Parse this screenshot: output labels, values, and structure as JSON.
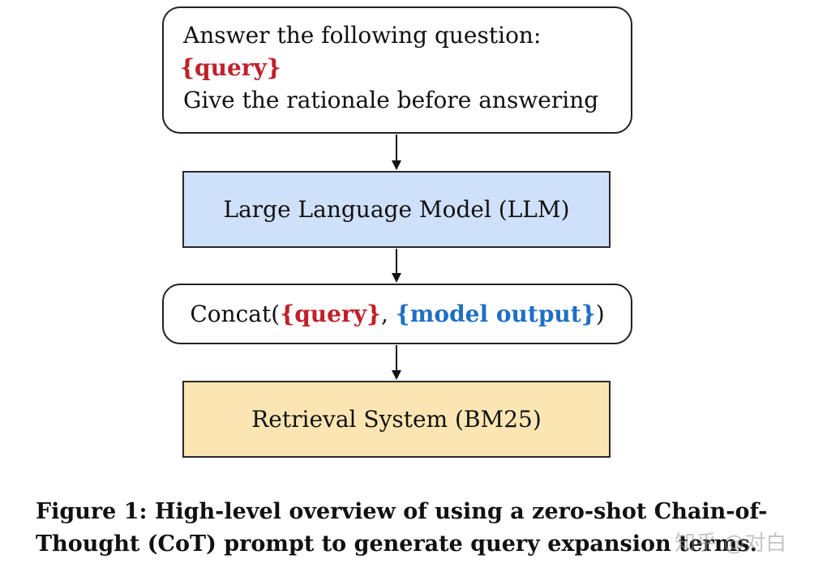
{
  "diagram": {
    "prompt_box": {
      "line1": "Answer the following question:",
      "line2": "{query}",
      "line3": "Give the rationale before answering"
    },
    "llm_box": {
      "label": "Large Language Model (LLM)"
    },
    "concat_box": {
      "prefix": "Concat(",
      "query": "{query}",
      "separator": ", ",
      "model_output": "{model output}",
      "suffix": ")"
    },
    "retrieval_box": {
      "label": "Retrieval System (BM25)"
    }
  },
  "caption": {
    "line1": "Figure 1: High-level overview of using a zero-shot Chain-of-",
    "line2": "Thought (CoT) prompt to generate query expansion terms."
  },
  "watermark": {
    "text": "知乎 @对白"
  },
  "colors": {
    "query_red": "#c0202a",
    "model_output_blue": "#1f6fc4",
    "llm_fill": "#cfe0fa",
    "retrieval_fill": "#fbe6b3"
  }
}
